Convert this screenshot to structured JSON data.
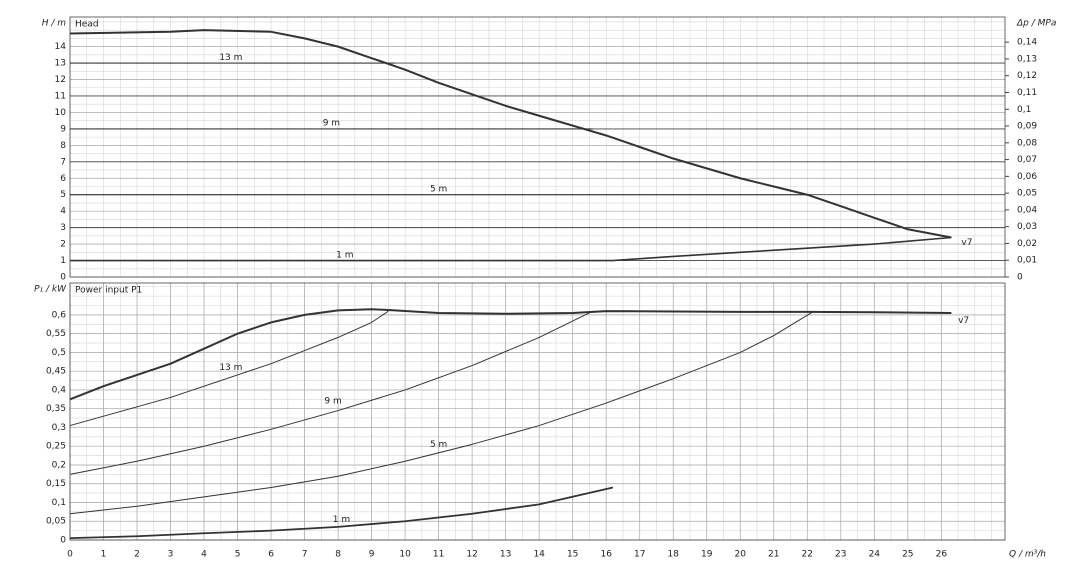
{
  "chart_data": [
    {
      "type": "line",
      "title": "Head",
      "ylabel": "H / m",
      "y2label": "Δp / MPa",
      "xlim": [
        0,
        27.9
      ],
      "ylim": [
        0,
        15.8
      ],
      "y2lim": [
        0,
        0.155
      ],
      "x_minor_step": 0.5,
      "y_minor_step": 0.5,
      "grid": true,
      "grid_emphasis": "odd",
      "yticks": [
        0,
        1,
        2,
        3,
        4,
        5,
        6,
        7,
        8,
        9,
        10,
        11,
        12,
        13,
        14
      ],
      "y2ticks": [
        0,
        {
          "value": 0.01,
          "label": "0,01"
        },
        {
          "value": 0.02,
          "label": "0,02"
        },
        {
          "value": 0.03,
          "label": "0,03"
        },
        {
          "value": 0.04,
          "label": "0,04"
        },
        {
          "value": 0.05,
          "label": "0,05"
        },
        {
          "value": 0.06,
          "label": "0,06"
        },
        {
          "value": 0.07,
          "label": "0,07"
        },
        {
          "value": 0.08,
          "label": "0,08"
        },
        {
          "value": 0.09,
          "label": "0,09"
        },
        {
          "value": 0.1,
          "label": "0,1"
        },
        {
          "value": 0.11,
          "label": "0,11"
        },
        {
          "value": 0.12,
          "label": "0,12"
        },
        {
          "value": 0.13,
          "label": "0,13"
        },
        {
          "value": 0.14,
          "label": "0,14"
        }
      ],
      "series": [
        {
          "name": "v7",
          "color": "#333333",
          "x": [
            0,
            3,
            4,
            6,
            7,
            8,
            9,
            10,
            11,
            12,
            13,
            14,
            15,
            16,
            17,
            18,
            19,
            20,
            21,
            22,
            23,
            24,
            25,
            26.3
          ],
          "values": [
            14.8,
            14.9,
            15.0,
            14.9,
            14.5,
            14.0,
            13.3,
            12.6,
            11.8,
            11.1,
            10.4,
            9.8,
            9.2,
            8.6,
            7.9,
            7.2,
            6.6,
            6.0,
            5.5,
            5.0,
            4.3,
            3.6,
            2.9,
            2.4
          ]
        },
        {
          "name": "13 m",
          "color": "#333333",
          "x": [
            0,
            9.7
          ],
          "values": [
            13,
            13
          ]
        },
        {
          "name": "9 m",
          "color": "#333333",
          "x": [
            0,
            15.6
          ],
          "values": [
            9,
            9
          ]
        },
        {
          "name": "5 m",
          "color": "#333333",
          "x": [
            0,
            22.1
          ],
          "values": [
            5,
            5
          ]
        },
        {
          "name": "1 m",
          "color": "#333333",
          "x": [
            0,
            16.2,
            18,
            20,
            22,
            24,
            26.3
          ],
          "values": [
            1,
            1,
            1.25,
            1.5,
            1.75,
            2.0,
            2.4
          ]
        }
      ]
    },
    {
      "type": "line",
      "title": "Power input P1",
      "ylabel": "P₁ / kW",
      "xlabel": "Q / m³/h",
      "xlim": [
        0,
        27.9
      ],
      "ylim": [
        0,
        0.685
      ],
      "x_minor_step": 0.5,
      "y_minor_step": 0.025,
      "grid": true,
      "xticks": [
        0,
        1,
        2,
        3,
        4,
        5,
        6,
        7,
        8,
        9,
        10,
        11,
        12,
        13,
        14,
        15,
        16,
        17,
        18,
        19,
        20,
        21,
        22,
        23,
        24,
        25,
        26
      ],
      "yticks": [
        0,
        {
          "value": 0.05,
          "label": "0,05"
        },
        {
          "value": 0.1,
          "label": "0,1"
        },
        {
          "value": 0.15,
          "label": "0,15"
        },
        {
          "value": 0.2,
          "label": "0,2"
        },
        {
          "value": 0.25,
          "label": "0,25"
        },
        {
          "value": 0.3,
          "label": "0,3"
        },
        {
          "value": 0.35,
          "label": "0,35"
        },
        {
          "value": 0.4,
          "label": "0,4"
        },
        {
          "value": 0.45,
          "label": "0,45"
        },
        {
          "value": 0.5,
          "label": "0,5"
        },
        {
          "value": 0.55,
          "label": "0,55"
        },
        {
          "value": 0.6,
          "label": "0,6"
        }
      ],
      "series": [
        {
          "name": "v7",
          "color": "#333333",
          "x": [
            0,
            1,
            2,
            3,
            4,
            5,
            6,
            7,
            8,
            9,
            9.5,
            11,
            13,
            15,
            16,
            20,
            22,
            24,
            26.3
          ],
          "values": [
            0.375,
            0.41,
            0.44,
            0.47,
            0.51,
            0.55,
            0.58,
            0.6,
            0.612,
            0.615,
            0.613,
            0.605,
            0.603,
            0.605,
            0.61,
            0.608,
            0.608,
            0.607,
            0.605
          ]
        },
        {
          "name": "13 m",
          "color": "#333333",
          "x": [
            0,
            1,
            2,
            3,
            4,
            5,
            6,
            7,
            8,
            9,
            9.5
          ],
          "values": [
            0.305,
            0.33,
            0.355,
            0.38,
            0.41,
            0.44,
            0.47,
            0.505,
            0.54,
            0.58,
            0.61
          ]
        },
        {
          "name": "9 m",
          "color": "#333333",
          "x": [
            0,
            2,
            4,
            6,
            8,
            10,
            12,
            14,
            15.6
          ],
          "values": [
            0.175,
            0.21,
            0.25,
            0.295,
            0.345,
            0.4,
            0.465,
            0.54,
            0.61
          ]
        },
        {
          "name": "5 m",
          "color": "#333333",
          "x": [
            0,
            2,
            4,
            6,
            8,
            10,
            12,
            14,
            16,
            18,
            20,
            21,
            22.2
          ],
          "values": [
            0.07,
            0.09,
            0.115,
            0.14,
            0.17,
            0.21,
            0.255,
            0.305,
            0.365,
            0.43,
            0.5,
            0.545,
            0.61
          ]
        },
        {
          "name": "1 m",
          "color": "#333333",
          "x": [
            0,
            2,
            4,
            6,
            8,
            10,
            12,
            14,
            16.2
          ],
          "values": [
            0.005,
            0.01,
            0.018,
            0.025,
            0.035,
            0.05,
            0.07,
            0.095,
            0.14
          ]
        }
      ]
    }
  ]
}
